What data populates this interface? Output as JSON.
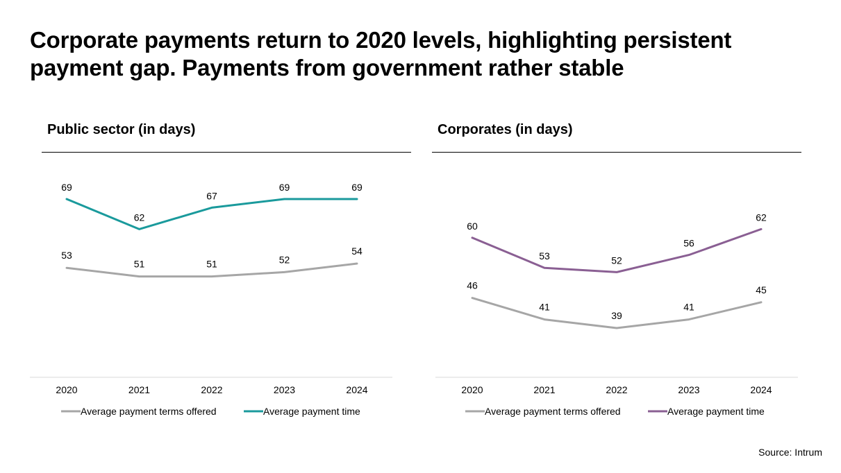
{
  "title": "Corporate payments return to 2020 levels, highlighting persistent payment gap. Payments from government rather stable",
  "source": "Source: Intrum",
  "colors": {
    "terms": "#a6a6a6",
    "public_time": "#1a9a9c",
    "corporate_time": "#8a5f93",
    "axis": "#d9d9d9"
  },
  "chart_data": [
    {
      "type": "line",
      "title": "Public sector (in days)",
      "x": [
        "2020",
        "2021",
        "2022",
        "2023",
        "2024"
      ],
      "ylim": [
        0,
        80
      ],
      "series": [
        {
          "name": "Average payment terms offered",
          "values": [
            53,
            51,
            51,
            52,
            54
          ],
          "color": "#a6a6a6"
        },
        {
          "name": "Average payment time",
          "values": [
            69,
            62,
            67,
            69,
            69
          ],
          "color": "#1a9a9c"
        }
      ],
      "legend": "bottom"
    },
    {
      "type": "line",
      "title": "Corporates (in days)",
      "x": [
        "2020",
        "2021",
        "2022",
        "2023",
        "2024"
      ],
      "ylim": [
        0,
        80
      ],
      "series": [
        {
          "name": "Average payment terms offered",
          "values": [
            46,
            41,
            39,
            41,
            45
          ],
          "color": "#a6a6a6"
        },
        {
          "name": "Average payment time",
          "values": [
            60,
            53,
            52,
            56,
            62
          ],
          "color": "#8a5f93"
        }
      ],
      "legend": "bottom"
    }
  ]
}
